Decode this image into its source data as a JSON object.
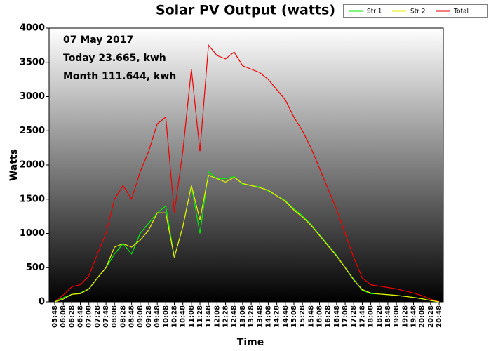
{
  "chart_data": {
    "type": "line",
    "title": "Solar PV Output (watts)",
    "x_label": "Time",
    "y_label": "Watts",
    "annotations": [
      "07 May 2017",
      "Today 23.665, kwh",
      "Month 111.644, kwh"
    ],
    "categories": [
      "05:48",
      "06:08",
      "06:28",
      "06:48",
      "07:08",
      "07:28",
      "07:48",
      "08:08",
      "08:28",
      "08:48",
      "09:08",
      "09:28",
      "09:48",
      "10:08",
      "10:28",
      "10:48",
      "11:08",
      "11:28",
      "11:48",
      "12:08",
      "12:28",
      "12:48",
      "13:08",
      "13:28",
      "13:48",
      "14:08",
      "14:28",
      "14:48",
      "15:08",
      "15:28",
      "15:48",
      "16:08",
      "16:28",
      "16:48",
      "17:08",
      "17:28",
      "17:48",
      "18:08",
      "18:28",
      "18:48",
      "19:08",
      "19:28",
      "19:48",
      "20:08",
      "20:28",
      "20:48"
    ],
    "series": [
      {
        "name": "Str 1",
        "color": "#00ee00",
        "values": [
          0,
          60,
          110,
          130,
          190,
          350,
          500,
          700,
          850,
          700,
          1000,
          1150,
          1300,
          1400,
          650,
          1100,
          1700,
          1000,
          1900,
          1800,
          1800,
          1830,
          1720,
          1700,
          1680,
          1620,
          1550,
          1480,
          1360,
          1260,
          1130,
          980,
          830,
          680,
          500,
          330,
          170,
          120,
          115,
          105,
          95,
          80,
          65,
          45,
          20,
          0
        ]
      },
      {
        "name": "Str 2",
        "color": "#eeee00",
        "values": [
          0,
          40,
          110,
          120,
          190,
          350,
          500,
          800,
          850,
          800,
          900,
          1050,
          1300,
          1300,
          650,
          1100,
          1700,
          1200,
          1850,
          1800,
          1750,
          1820,
          1730,
          1700,
          1670,
          1630,
          1550,
          1470,
          1340,
          1240,
          1120,
          970,
          820,
          670,
          500,
          320,
          180,
          130,
          115,
          105,
          95,
          80,
          65,
          45,
          20,
          0
        ]
      },
      {
        "name": "Total",
        "color": "#ee0000",
        "values": [
          0,
          100,
          220,
          250,
          380,
          700,
          1000,
          1500,
          1700,
          1500,
          1900,
          2200,
          2600,
          2700,
          1300,
          2200,
          3400,
          2200,
          3750,
          3600,
          3550,
          3650,
          3450,
          3400,
          3350,
          3250,
          3100,
          2950,
          2700,
          2500,
          2250,
          1950,
          1650,
          1350,
          1000,
          650,
          350,
          250,
          230,
          210,
          190,
          160,
          130,
          90,
          40,
          0
        ]
      }
    ],
    "ylim": [
      0,
      4000
    ],
    "yticks": [
      0,
      500,
      1000,
      1500,
      2000,
      2500,
      3000,
      3500,
      4000
    ]
  }
}
